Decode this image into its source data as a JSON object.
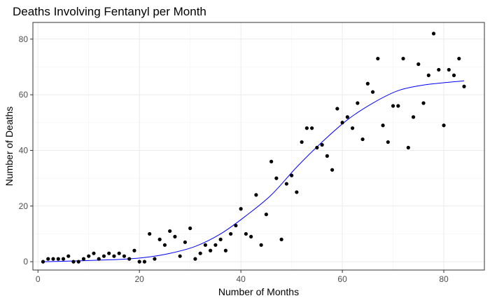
{
  "chart_data": {
    "type": "scatter",
    "title": "Deaths Involving Fentanyl per Month",
    "xlabel": "Number of Months",
    "ylabel": "Number of Deaths",
    "xlim": [
      -1,
      88
    ],
    "ylim": [
      -3,
      86
    ],
    "x_ticks": [
      0,
      20,
      40,
      60,
      80
    ],
    "y_ticks": [
      0,
      20,
      40,
      60,
      80
    ],
    "x_minor": [
      10,
      30,
      50,
      70
    ],
    "y_minor": [
      10,
      30,
      50,
      70
    ],
    "grid": true,
    "smooth_color": "#0000ff",
    "point_color": "#000000",
    "x": [
      1,
      2,
      3,
      4,
      5,
      6,
      7,
      8,
      9,
      10,
      11,
      12,
      13,
      14,
      15,
      16,
      17,
      18,
      19,
      20,
      21,
      22,
      23,
      24,
      25,
      26,
      27,
      28,
      29,
      30,
      31,
      32,
      33,
      34,
      35,
      36,
      37,
      38,
      39,
      40,
      41,
      42,
      43,
      44,
      45,
      46,
      47,
      48,
      49,
      50,
      51,
      52,
      53,
      54,
      55,
      56,
      57,
      58,
      59,
      60,
      61,
      62,
      63,
      64,
      65,
      66,
      67,
      68,
      69,
      70,
      71,
      72,
      73,
      74,
      75,
      76,
      77,
      78,
      79,
      80,
      81,
      82,
      83,
      84
    ],
    "y": [
      0,
      1,
      1,
      1,
      1,
      2,
      0,
      0,
      1,
      2,
      3,
      1,
      2,
      3,
      2,
      3,
      2,
      1,
      4,
      0,
      0,
      10,
      1,
      8,
      6,
      11,
      9,
      2,
      7,
      12,
      1,
      3,
      6,
      4,
      6,
      8,
      4,
      10,
      13,
      19,
      10,
      9,
      24,
      6,
      17,
      36,
      30,
      8,
      28,
      31,
      25,
      43,
      48,
      48,
      41,
      42,
      38,
      33,
      55,
      50,
      52,
      48,
      57,
      44,
      64,
      61,
      73,
      49,
      43,
      56,
      56,
      73,
      41,
      52,
      71,
      57,
      67,
      82,
      69,
      49,
      69,
      67,
      73,
      63
    ],
    "smooth_x": [
      1,
      6,
      11,
      16,
      21,
      26,
      31,
      36,
      41,
      46,
      51,
      56,
      61,
      66,
      71,
      76,
      81,
      84
    ],
    "smooth_y": [
      0,
      0.2,
      0.5,
      0.8,
      1.5,
      3,
      5.5,
      10,
      16.5,
      24,
      34,
      43,
      51,
      57,
      61.5,
      63.5,
      64.5,
      65
    ]
  }
}
